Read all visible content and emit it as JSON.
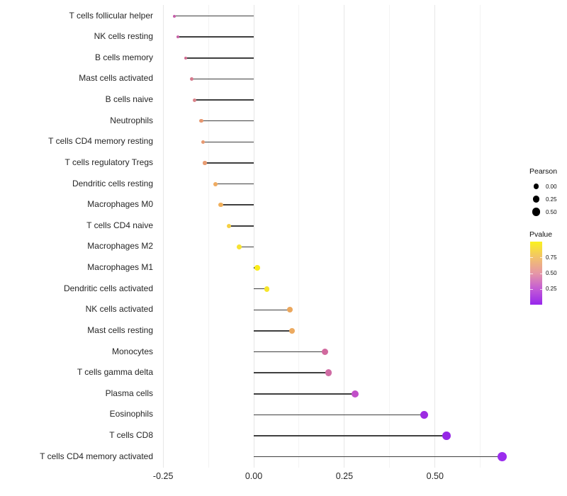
{
  "chart_data": {
    "type": "lollipop",
    "title": "",
    "xlabel": "",
    "ylabel": "",
    "x_axis": {
      "range": [
        -0.264,
        0.733
      ],
      "major_ticks": [
        -0.25,
        0,
        0.25,
        0.5
      ],
      "tick_labels": [
        "-0.25",
        "0.00",
        "0.25",
        "0.50"
      ],
      "minor_ticks": [
        -0.125,
        0.125,
        0.375,
        0.625
      ],
      "grid": true
    },
    "size_domain": [
      -0.22,
      0.688
    ],
    "points": [
      {
        "label": "T cells follicular helper",
        "pearson": -0.219,
        "pvalue": 0.3,
        "color": "#C55FA9"
      },
      {
        "label": "NK cells resting",
        "pearson": -0.209,
        "pvalue": 0.31,
        "color": "#C862A6"
      },
      {
        "label": "B cells memory",
        "pearson": -0.188,
        "pvalue": 0.42,
        "color": "#CF6C90"
      },
      {
        "label": "Mast cells activated",
        "pearson": -0.172,
        "pvalue": 0.45,
        "color": "#D47B8D"
      },
      {
        "label": "B cells naive",
        "pearson": -0.163,
        "pvalue": 0.47,
        "color": "#DA838A"
      },
      {
        "label": "Neutrophils",
        "pearson": -0.145,
        "pvalue": 0.6,
        "color": "#E69770"
      },
      {
        "label": "T cells CD4 memory resting",
        "pearson": -0.14,
        "pvalue": 0.61,
        "color": "#E79971"
      },
      {
        "label": "T cells regulatory  Tregs",
        "pearson": -0.135,
        "pvalue": 0.62,
        "color": "#E89C72"
      },
      {
        "label": "Dendritic cells resting",
        "pearson": -0.106,
        "pvalue": 0.7,
        "color": "#EFAB61"
      },
      {
        "label": "Macrophages M0",
        "pearson": -0.091,
        "pvalue": 0.72,
        "color": "#F0AF5B"
      },
      {
        "label": "T cells CD4 naive",
        "pearson": -0.069,
        "pvalue": 0.85,
        "color": "#F5D044"
      },
      {
        "label": "Macrophages M2",
        "pearson": -0.04,
        "pvalue": 0.92,
        "color": "#F7E232"
      },
      {
        "label": "Macrophages M1",
        "pearson": 0.01,
        "pvalue": 0.97,
        "color": "#FAEC1C"
      },
      {
        "label": "Dendritic cells activated",
        "pearson": 0.036,
        "pvalue": 0.93,
        "color": "#F6E52B"
      },
      {
        "label": "NK cells activated",
        "pearson": 0.1,
        "pvalue": 0.72,
        "color": "#EBA75D"
      },
      {
        "label": "Mast cells resting",
        "pearson": 0.106,
        "pvalue": 0.71,
        "color": "#ECAA60"
      },
      {
        "label": "Monocytes",
        "pearson": 0.196,
        "pvalue": 0.36,
        "color": "#D1699E"
      },
      {
        "label": "T cells gamma delta",
        "pearson": 0.206,
        "pvalue": 0.35,
        "color": "#D06CA4"
      },
      {
        "label": "Plasma cells",
        "pearson": 0.28,
        "pvalue": 0.22,
        "color": "#C14FC8"
      },
      {
        "label": "Eosinophils",
        "pearson": 0.47,
        "pvalue": 0.06,
        "color": "#9D2BE2"
      },
      {
        "label": "T cells CD8",
        "pearson": 0.532,
        "pvalue": 0.04,
        "color": "#9627E6"
      },
      {
        "label": "T cells CD4 memory activated",
        "pearson": 0.685,
        "pvalue": 0.02,
        "color": "#9B2DEE"
      }
    ],
    "legend": {
      "position": "right",
      "size": {
        "title": "Pearson",
        "dot_color": "#000000",
        "items": [
          {
            "label": "0.00",
            "value": 0
          },
          {
            "label": "0.25",
            "value": 0.25
          },
          {
            "label": "0.50",
            "value": 0.5
          }
        ]
      },
      "color": {
        "title": "Pvalue",
        "range": [
          0,
          1
        ],
        "ticks": [
          {
            "label": "0.75",
            "value": 0.75
          },
          {
            "label": "0.50",
            "value": 0.5
          },
          {
            "label": "0.25",
            "value": 0.25
          }
        ],
        "gradient": [
          {
            "pos": 0,
            "color": "#9726EC"
          },
          {
            "pos": 0.25,
            "color": "#C35BD5"
          },
          {
            "pos": 0.5,
            "color": "#E697A6"
          },
          {
            "pos": 0.75,
            "color": "#F2C26B"
          },
          {
            "pos": 1,
            "color": "#FAF21E"
          }
        ]
      }
    },
    "style": {
      "stem_color": "#3f3f3f",
      "grid_major_color": "#e7e7e7",
      "grid_minor_color": "#f3f3f3",
      "text_color": "#262626",
      "panel_background": "#ffffff"
    }
  }
}
